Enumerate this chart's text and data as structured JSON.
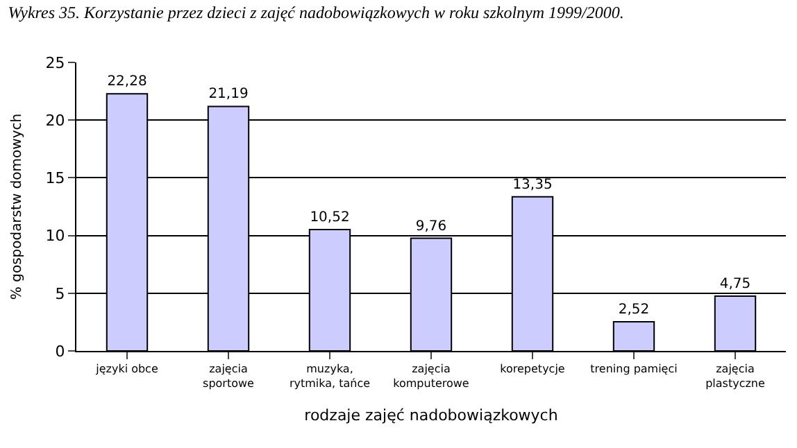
{
  "chart_data": {
    "type": "bar",
    "title": "Wykres 35. Korzystanie przez dzieci z zajęć nadobowiązkowych w roku szkolnym 1999/2000.",
    "xlabel": "rodzaje zajęć nadobowiązkowych",
    "ylabel": "% gospodarstw domowych",
    "categories": [
      "języki obce",
      "zajęcia\nsportowe",
      "muzyka,\nrytmika, tańce",
      "zajęcia\nkomputerowe",
      "korepetycje",
      "trening pamięci",
      "zajęcia\nplastyczne"
    ],
    "values": [
      22.28,
      21.19,
      10.52,
      9.76,
      13.35,
      2.52,
      4.75
    ],
    "value_labels": [
      "22,28",
      "21,19",
      "10,52",
      "9,76",
      "13,35",
      "2,52",
      "4,75"
    ],
    "color": "#ccccff",
    "ylim": [
      0,
      25
    ],
    "yticks": [
      0,
      5,
      10,
      15,
      20,
      25
    ],
    "grid": "y"
  }
}
